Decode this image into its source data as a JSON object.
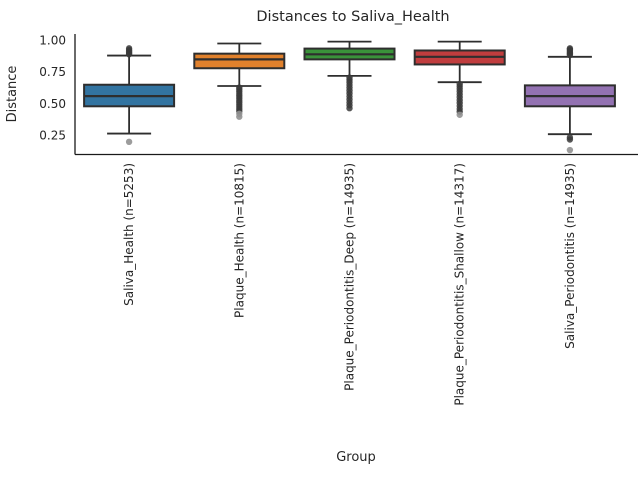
{
  "figure": {
    "background": "#ffffff"
  },
  "chart_data": {
    "type": "box",
    "title": "Distances to Saliva_Health",
    "xlabel": "Group",
    "ylabel": "Distance",
    "ylim": [
      0.1,
      1.05
    ],
    "grid": false,
    "legend": "none",
    "yticks": [
      {
        "value": 1.0,
        "label": "1.00"
      },
      {
        "value": 0.75,
        "label": "0.75"
      },
      {
        "value": 0.5,
        "label": "0.50"
      },
      {
        "value": 0.25,
        "label": "0.25"
      }
    ],
    "colors": {
      "box_edge": "#2e2e2e",
      "whisker": "#2e2e2e",
      "spine": "#1a1a1a",
      "outlier_dark": "#3a3a3a",
      "outlier_light": "#919191",
      "text": "#262626"
    },
    "groups": [
      {
        "label": "Saliva_Health (n=5253)",
        "n": 5253,
        "fill": "#3274A1",
        "whisker_low": 0.265,
        "q1": 0.48,
        "median": 0.56,
        "q3": 0.65,
        "whisker_high": 0.88,
        "outliers_dark": [
          0.89,
          0.9,
          0.912,
          0.925,
          0.937
        ],
        "outliers_light": [
          0.2
        ]
      },
      {
        "label": "Plaque_Health (n=10815)",
        "n": 10815,
        "fill": "#E1812C",
        "whisker_low": 0.64,
        "q1": 0.78,
        "median": 0.85,
        "q3": 0.895,
        "whisker_high": 0.975,
        "outliers_dark": [
          0.628,
          0.612,
          0.596,
          0.578,
          0.561,
          0.544,
          0.527,
          0.51,
          0.492,
          0.475,
          0.458,
          0.441
        ],
        "outliers_light": [
          0.421,
          0.398
        ]
      },
      {
        "label": "Plaque_Periodontitis_Deep (n=14935)",
        "n": 14935,
        "fill": "#3A923A",
        "whisker_low": 0.72,
        "q1": 0.85,
        "median": 0.89,
        "q3": 0.935,
        "whisker_high": 0.99,
        "outliers_dark": [
          0.706,
          0.689,
          0.67,
          0.649,
          0.627,
          0.604,
          0.581,
          0.558,
          0.534,
          0.511,
          0.488,
          0.465
        ],
        "outliers_light": []
      },
      {
        "label": "Plaque_Periodontitis_Shallow (n=14317)",
        "n": 14317,
        "fill": "#C03D3E",
        "whisker_low": 0.67,
        "q1": 0.81,
        "median": 0.87,
        "q3": 0.92,
        "whisker_high": 0.99,
        "outliers_dark": [
          0.656,
          0.638,
          0.618,
          0.597,
          0.575,
          0.552,
          0.529,
          0.506,
          0.483,
          0.46,
          0.438
        ],
        "outliers_light": [
          0.413
        ]
      },
      {
        "label": "Saliva_Periodontitis (n=14935)",
        "n": 14935,
        "fill": "#9372B2",
        "whisker_low": 0.26,
        "q1": 0.48,
        "median": 0.56,
        "q3": 0.645,
        "whisker_high": 0.87,
        "outliers_dark": [
          0.884,
          0.895,
          0.906,
          0.917,
          0.928,
          0.937,
          0.235,
          0.218
        ],
        "outliers_light": [
          0.135
        ]
      }
    ]
  }
}
